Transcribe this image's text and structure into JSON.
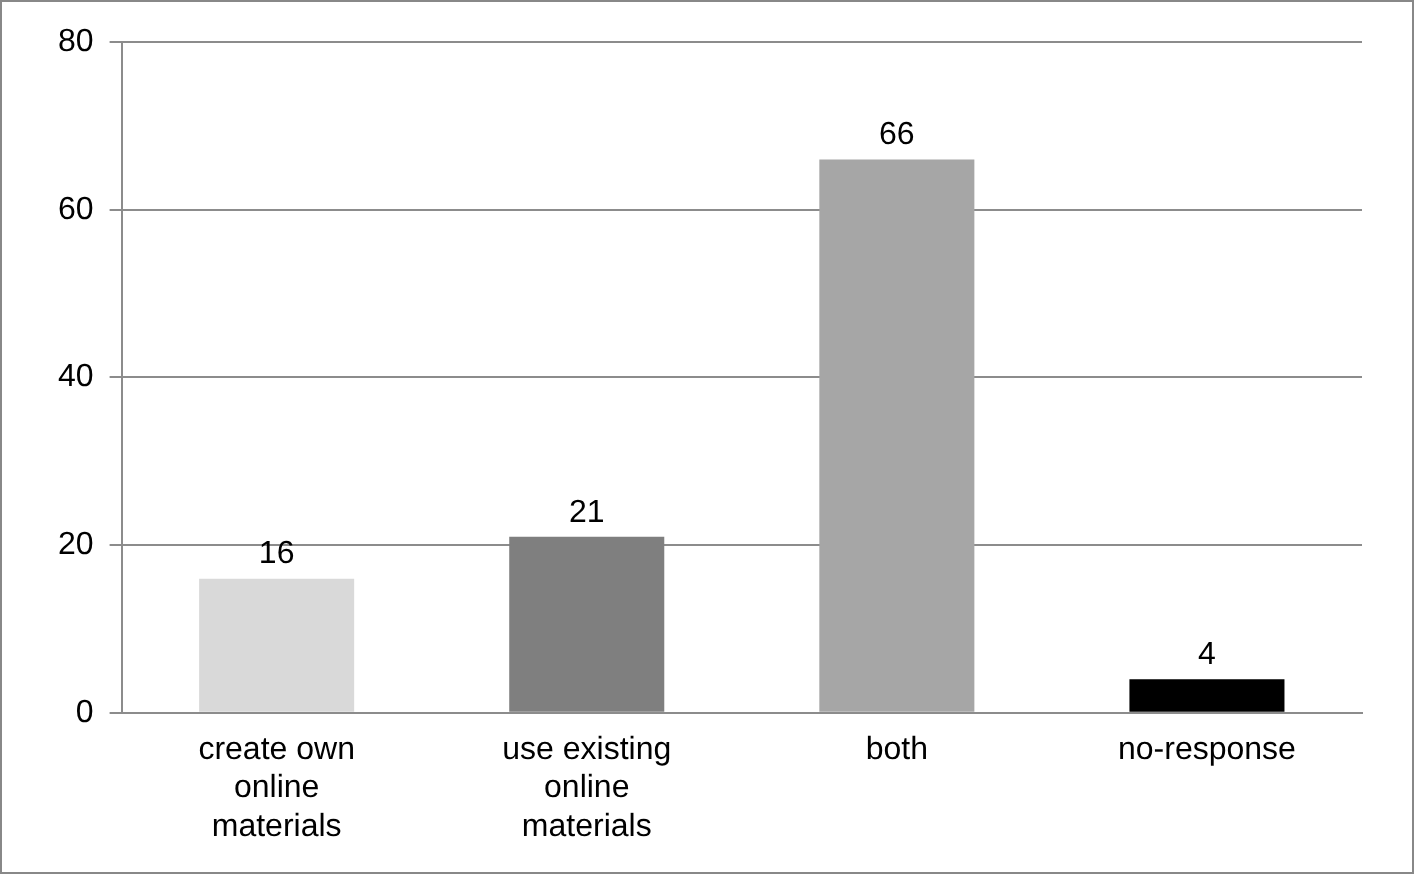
{
  "chart_data": {
    "type": "bar",
    "categories": [
      "create own online materials",
      "use existing online materials",
      "both",
      "no-response"
    ],
    "values": [
      16,
      21,
      66,
      4
    ],
    "colors": [
      "#d9d9d9",
      "#7f7f7f",
      "#a6a6a6",
      "#000000"
    ],
    "ylim": [
      0,
      80
    ],
    "yticks": [
      0,
      20,
      40,
      60,
      80
    ],
    "grid": "y",
    "data_labels": true,
    "legend": false
  }
}
